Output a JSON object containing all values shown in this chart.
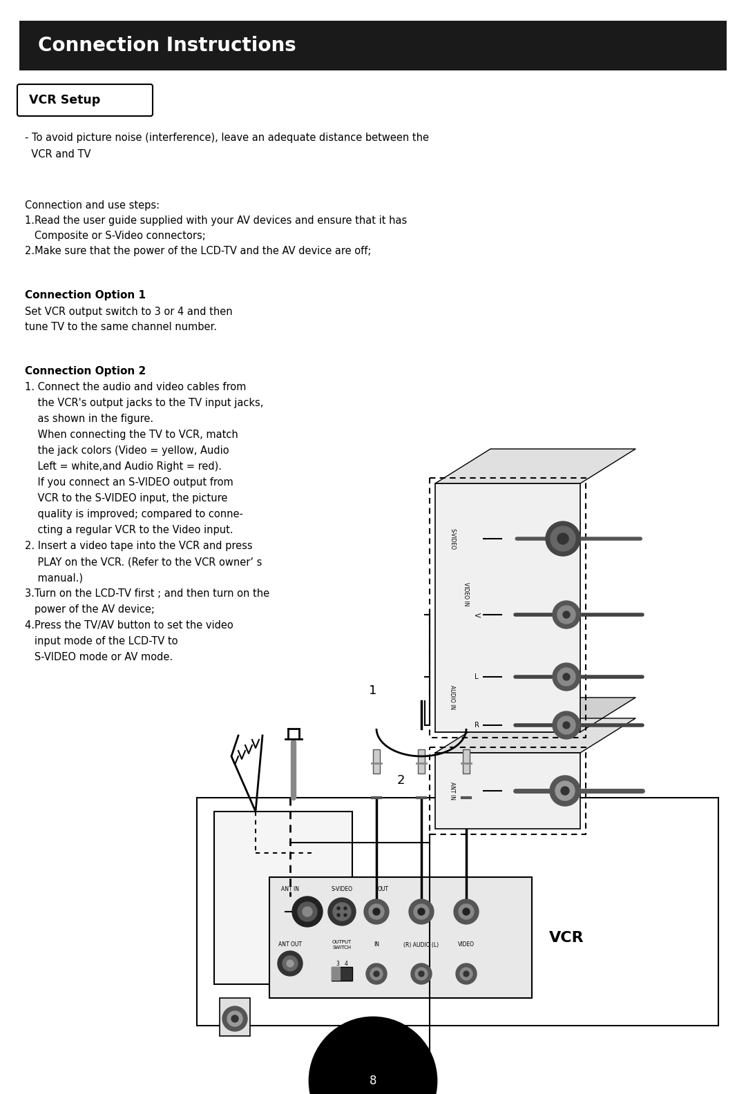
{
  "bg_color": "#ffffff",
  "header_bg": "#1a1a1a",
  "header_text": "Connection Instructions",
  "header_text_color": "#ffffff",
  "header_fontsize": 20,
  "section_label": "VCR Setup",
  "body_fontsize": 10.5,
  "bold_fontsize": 11,
  "page_number": "8",
  "line1": "- To avoid picture noise (interference), leave an adequate distance between the",
  "line2": "  VCR and TV",
  "steps_header": "Connection and use steps:",
  "step1a": "1.Read the user guide supplied with your AV devices and ensure that it has",
  "step1b": "   Composite or S-Video connectors;",
  "step2": "2.Make sure that the power of the LCD-TV and the AV device are off;",
  "option1_title": "Connection Option 1",
  "option1_line1": "Set VCR output switch to 3 or 4 and then",
  "option1_line2": "tune TV to the same channel number.",
  "option2_title": "Connection Option 2",
  "option2_lines": [
    "1. Connect the audio and video cables from",
    "    the VCR's output jacks to the TV input jacks,",
    "    as shown in the figure.",
    "    When connecting the TV to VCR, match",
    "    the jack colors (Video = yellow, Audio",
    "    Left = white,and Audio Right = red).",
    "    If you connect an S-VIDEO output from",
    "    VCR to the S-VIDEO input, the picture",
    "    quality is improved; compared to conne-",
    "    cting a regular VCR to the Video input.",
    "2. Insert a video tape into the VCR and press",
    "    PLAY on the VCR. (Refer to the VCR owner’ s",
    "    manual.)",
    "3.Turn on the LCD-TV first ; and then turn on the",
    "   power of the AV device;",
    "4.Press the TV/AV button to set the video",
    "   input mode of the LCD-TV to",
    "   S-VIDEO mode or AV mode."
  ],
  "vcr_label": "VCR",
  "num1_label": "1",
  "num2_label": "2"
}
